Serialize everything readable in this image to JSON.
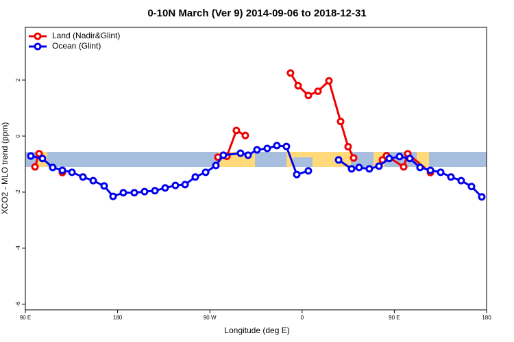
{
  "chart_data": {
    "type": "line",
    "title": "0-10N March (Ver 9)   2014-09-06 to 2018-12-31",
    "x_label": "Longitude (deg E)",
    "y_label": "XCO2 - MLO trend (ppm)",
    "xlim": [
      90,
      540
    ],
    "xticks": [
      {
        "value": 90,
        "label": "90 E"
      },
      {
        "value": 180,
        "label": "180"
      },
      {
        "value": 270,
        "label": "90 W"
      },
      {
        "value": 360,
        "label": "0"
      },
      {
        "value": 450,
        "label": "90 E"
      },
      {
        "value": 540,
        "label": "180"
      }
    ],
    "ylim": [
      -6.2,
      3.88
    ],
    "yticks": [
      -6,
      -4,
      -2,
      0,
      2
    ],
    "legend": "top-left",
    "series": [
      {
        "name": "Land (Nadir&Glint)",
        "color": "#ee0000",
        "x": [
          99.4,
          103.4,
          null,
          126.1,
          null,
          277.9,
          286.6,
          295.9,
          304.6,
          null,
          348.7,
          356.1,
          366.1,
          375.5,
          386.2,
          397.6,
          404.9,
          410.3,
          null,
          438.4,
          442.4,
          459.1,
          463.1,
          485.2
        ],
        "values": [
          -1.1,
          -0.63,
          null,
          -1.3,
          null,
          -0.75,
          -0.72,
          0.2,
          0.02,
          null,
          2.25,
          1.8,
          1.45,
          1.6,
          1.97,
          0.52,
          -0.38,
          -0.78,
          null,
          -0.85,
          -0.7,
          -1.1,
          -0.63,
          -1.3
        ]
      },
      {
        "name": "Ocean (Glint)",
        "color": "#0000ee",
        "x": [
          95.3,
          106.7,
          116.7,
          126.1,
          135.5,
          146.2,
          156.2,
          166.9,
          175.6,
          185.6,
          196.3,
          206.3,
          216.4,
          226.4,
          236.4,
          245.8,
          255.8,
          265.9,
          275.9,
          283.2,
          299.9,
          307.3,
          316.0,
          326.0,
          335.4,
          344.7,
          354.8,
          366.1,
          null,
          395.6,
          408.3,
          415.6,
          425.6,
          435.0,
          445.0,
          455.1,
          465.1,
          475.1,
          485.2,
          495.2,
          505.2,
          515.2,
          525.3,
          535.3
        ],
        "values": [
          -0.71,
          -0.8,
          -1.12,
          -1.22,
          -1.29,
          -1.46,
          -1.59,
          -1.78,
          -2.15,
          -2.02,
          -2.02,
          -1.98,
          -1.95,
          -1.85,
          -1.76,
          -1.73,
          -1.46,
          -1.29,
          -1.05,
          -0.68,
          -0.61,
          -0.68,
          -0.49,
          -0.44,
          -0.34,
          -0.37,
          -1.37,
          -1.24,
          null,
          -0.85,
          -1.17,
          -1.12,
          -1.17,
          -1.07,
          -0.8,
          -0.73,
          -0.8,
          -1.12,
          -1.22,
          -1.29,
          -1.46,
          -1.59,
          -1.8,
          -2.17
        ]
      }
    ]
  }
}
